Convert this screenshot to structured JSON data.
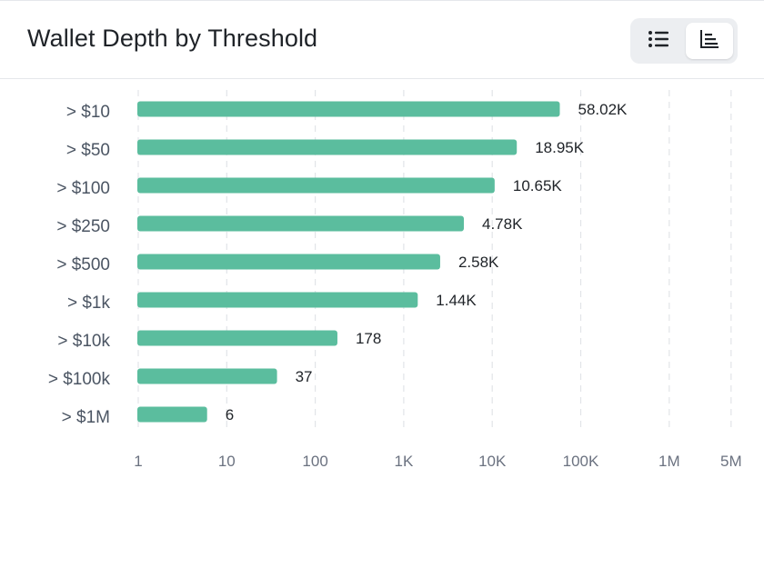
{
  "header": {
    "title": "Wallet Depth by Threshold",
    "view_toggle": {
      "list_icon": "list-icon",
      "bar_icon": "bar-chart-icon",
      "active": "bar"
    }
  },
  "chart_data": {
    "type": "bar",
    "orientation": "horizontal",
    "x_scale": "log",
    "xlim": [
      1,
      5000000
    ],
    "grid": true,
    "bar_color": "#5bbd9e",
    "categories": [
      "> $10",
      "> $50",
      "> $100",
      "> $250",
      "> $500",
      "> $1k",
      "> $10k",
      "> $100k",
      "> $1M"
    ],
    "values": [
      58020,
      18950,
      10650,
      4780,
      2580,
      1440,
      178,
      37,
      6
    ],
    "data_labels": [
      "58.02K",
      "18.95K",
      "10.65K",
      "4.78K",
      "2.58K",
      "1.44K",
      "178",
      "37",
      "6"
    ],
    "x_ticks": [
      {
        "value": 1,
        "label": "1"
      },
      {
        "value": 10,
        "label": "10"
      },
      {
        "value": 100,
        "label": "100"
      },
      {
        "value": 1000,
        "label": "1K"
      },
      {
        "value": 10000,
        "label": "10K"
      },
      {
        "value": 100000,
        "label": "100K"
      },
      {
        "value": 1000000,
        "label": "1M"
      },
      {
        "value": 5000000,
        "label": "5M"
      }
    ]
  }
}
